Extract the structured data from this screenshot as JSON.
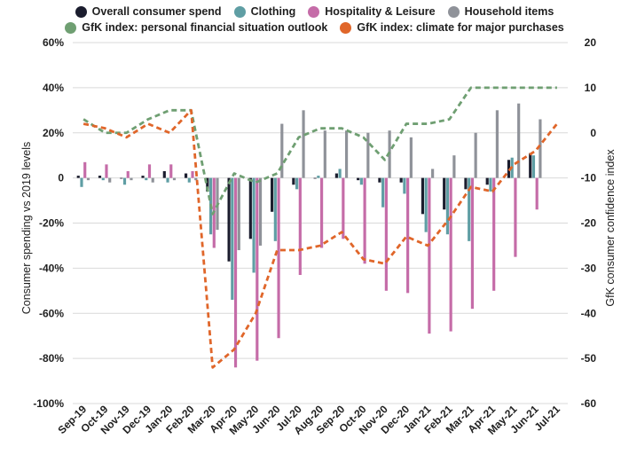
{
  "chart_data": {
    "type": "bar",
    "categories": [
      "Sep-19",
      "Oct-19",
      "Nov-19",
      "Dec-19",
      "Jan-20",
      "Feb-20",
      "Mar-20",
      "Apr-20",
      "May-20",
      "Jun-20",
      "Jul-20",
      "Aug-20",
      "Sep-20",
      "Oct-20",
      "Nov-20",
      "Dec-20",
      "Jan-21",
      "Feb-21",
      "Mar-21",
      "Apr-21",
      "May-21",
      "Jun-21",
      "Jul-21"
    ],
    "ylabel": "Consumer spending vs 2019 levels",
    "y2label": "GfK consumer confidence index",
    "ylim": [
      -100,
      60
    ],
    "y2lim": [
      -60,
      20
    ],
    "y_ticks": [
      "60%",
      "40%",
      "20%",
      "0",
      "-20%",
      "-40%",
      "-60%",
      "-80%",
      "-100%"
    ],
    "y2_ticks": [
      "20",
      "10",
      "0",
      "-10",
      "-20",
      "-30",
      "-40",
      "-50",
      "-60"
    ],
    "grid": true,
    "legend": [
      {
        "label": "Overall consumer spend",
        "color": "#1b1d2e"
      },
      {
        "label": "Clothing",
        "color": "#5f9ea4"
      },
      {
        "label": "Hospitality & Leisure",
        "color": "#c56ca8"
      },
      {
        "label": "Household items",
        "color": "#8f9299"
      },
      {
        "label": "GfK index: personal financial situation outlook",
        "color": "#6f9f72"
      },
      {
        "label": "GfK index: climate for major purchases",
        "color": "#e0662a"
      }
    ],
    "series": [
      {
        "name": "Overall consumer spend",
        "axis": "left",
        "color": "#1b1d2e",
        "values": [
          1,
          1,
          0,
          1,
          3,
          2,
          -6,
          -37,
          -27,
          -15,
          -3,
          0,
          2,
          -1,
          -2,
          -2,
          -16,
          -14,
          -5,
          -3,
          8,
          11,
          null
        ]
      },
      {
        "name": "Clothing",
        "axis": "left",
        "color": "#5f9ea4",
        "values": [
          -4,
          -1,
          -3,
          -1,
          -2,
          -2,
          -25,
          -54,
          -42,
          -28,
          -5,
          1,
          4,
          -3,
          -13,
          -7,
          -24,
          -25,
          -28,
          -6,
          9,
          10,
          null
        ]
      },
      {
        "name": "Hospitality & Leisure",
        "axis": "left",
        "color": "#c56ca8",
        "values": [
          7,
          6,
          3,
          6,
          6,
          3,
          -31,
          -84,
          -81,
          -71,
          -43,
          -31,
          -27,
          -38,
          -50,
          -51,
          -69,
          -68,
          -58,
          -50,
          -35,
          -14,
          null
        ]
      },
      {
        "name": "Household items",
        "axis": "left",
        "color": "#8f9299",
        "values": [
          -1,
          -2,
          -1,
          -2,
          -1,
          -1,
          -23,
          -32,
          -30,
          24,
          30,
          21,
          21,
          20,
          21,
          18,
          4,
          10,
          20,
          30,
          33,
          26,
          null
        ]
      },
      {
        "name": "GfK index: personal financial situation outlook",
        "axis": "right",
        "color": "#6f9f72",
        "values": [
          3,
          0,
          0,
          3,
          5,
          5,
          -18,
          -9,
          -11,
          -9,
          -1,
          1,
          1,
          -1,
          -6,
          2,
          2,
          3,
          10,
          10,
          10,
          10,
          10
        ]
      },
      {
        "name": "GfK index: climate for major purchases",
        "axis": "right",
        "color": "#e0662a",
        "values": [
          2,
          1,
          -1,
          2,
          0,
          5,
          -52,
          -48,
          -40,
          -26,
          -26,
          -25,
          -22,
          -28,
          -29,
          -23,
          -25,
          -19,
          -12,
          -13,
          -7,
          -4,
          2
        ]
      }
    ]
  }
}
